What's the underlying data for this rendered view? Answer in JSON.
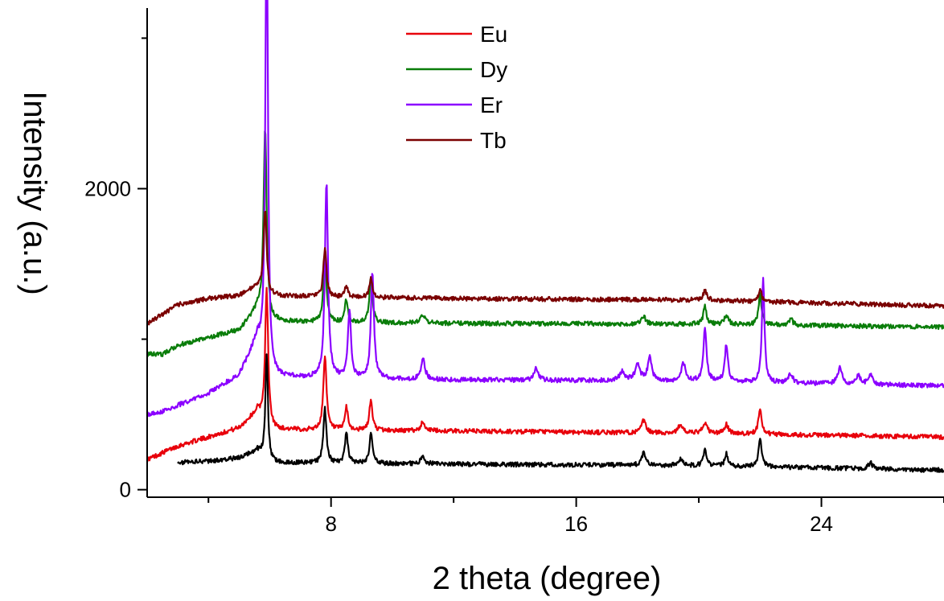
{
  "chart_data": {
    "type": "line",
    "xlabel": "2 theta (degree)",
    "ylabel": "Intensity (a.u.)",
    "xlim": [
      2,
      28
    ],
    "ylim": [
      -50,
      3200
    ],
    "x_ticks": [
      8,
      16,
      24
    ],
    "y_ticks": [
      0,
      2000
    ],
    "grid": false,
    "legend_position": "top-center",
    "series": [
      {
        "name": "Eu",
        "color": "#e8000b",
        "in_legend": true,
        "baseline": [
          [
            2.0,
            200
          ],
          [
            3.0,
            290
          ],
          [
            4.0,
            350
          ],
          [
            5.0,
            410
          ],
          [
            5.6,
            520
          ],
          [
            6.0,
            400
          ],
          [
            8.0,
            395
          ],
          [
            12.0,
            390
          ],
          [
            20.0,
            375
          ],
          [
            28.0,
            350
          ]
        ],
        "peaks": [
          [
            5.9,
            900,
            0.06
          ],
          [
            7.8,
            500,
            0.06
          ],
          [
            8.5,
            150,
            0.06
          ],
          [
            9.3,
            200,
            0.06
          ],
          [
            11.0,
            60,
            0.08
          ],
          [
            18.2,
            80,
            0.08
          ],
          [
            19.4,
            60,
            0.08
          ],
          [
            20.2,
            70,
            0.08
          ],
          [
            20.9,
            60,
            0.08
          ],
          [
            22.0,
            180,
            0.06
          ]
        ]
      },
      {
        "name": "Dy",
        "color": "#0a7d0a",
        "in_legend": true,
        "baseline": [
          [
            2.0,
            900
          ],
          [
            2.5,
            900
          ],
          [
            3.0,
            960
          ],
          [
            4.0,
            1010
          ],
          [
            5.0,
            1060
          ],
          [
            5.6,
            1200
          ],
          [
            6.0,
            1120
          ],
          [
            8.0,
            1110
          ],
          [
            12.0,
            1105
          ],
          [
            20.0,
            1100
          ],
          [
            28.0,
            1080
          ]
        ],
        "peaks": [
          [
            5.85,
            1250,
            0.06
          ],
          [
            7.8,
            450,
            0.06
          ],
          [
            8.5,
            150,
            0.06
          ],
          [
            9.3,
            300,
            0.06
          ],
          [
            11.0,
            60,
            0.08
          ],
          [
            18.2,
            50,
            0.08
          ],
          [
            20.2,
            120,
            0.06
          ],
          [
            20.9,
            60,
            0.08
          ],
          [
            22.0,
            200,
            0.06
          ],
          [
            23.0,
            40,
            0.08
          ]
        ]
      },
      {
        "name": "Er",
        "color": "#8b00ff",
        "in_legend": true,
        "baseline": [
          [
            2.0,
            500
          ],
          [
            2.5,
            520
          ],
          [
            3.0,
            560
          ],
          [
            4.0,
            640
          ],
          [
            5.0,
            760
          ],
          [
            5.6,
            1000
          ],
          [
            6.0,
            750
          ],
          [
            8.0,
            740
          ],
          [
            12.0,
            730
          ],
          [
            20.0,
            720
          ],
          [
            28.0,
            690
          ]
        ],
        "peaks": [
          [
            5.9,
            3100,
            0.05
          ],
          [
            7.85,
            1300,
            0.06
          ],
          [
            8.6,
            450,
            0.06
          ],
          [
            9.35,
            700,
            0.06
          ],
          [
            11.0,
            130,
            0.08
          ],
          [
            14.7,
            80,
            0.08
          ],
          [
            17.5,
            60,
            0.1
          ],
          [
            18.0,
            100,
            0.1
          ],
          [
            18.4,
            150,
            0.08
          ],
          [
            19.5,
            120,
            0.08
          ],
          [
            20.2,
            350,
            0.06
          ],
          [
            20.9,
            250,
            0.06
          ],
          [
            22.1,
            700,
            0.05
          ],
          [
            23.0,
            60,
            0.08
          ],
          [
            24.6,
            110,
            0.08
          ],
          [
            25.2,
            60,
            0.08
          ],
          [
            25.6,
            60,
            0.08
          ]
        ]
      },
      {
        "name": "Tb",
        "color": "#7a0000",
        "in_legend": true,
        "baseline": [
          [
            2.0,
            1100
          ],
          [
            3.0,
            1230
          ],
          [
            4.0,
            1270
          ],
          [
            5.0,
            1290
          ],
          [
            5.6,
            1350
          ],
          [
            6.0,
            1290
          ],
          [
            8.0,
            1280
          ],
          [
            12.0,
            1270
          ],
          [
            20.0,
            1260
          ],
          [
            28.0,
            1220
          ]
        ],
        "peaks": [
          [
            5.85,
            550,
            0.06
          ],
          [
            7.8,
            320,
            0.06
          ],
          [
            8.5,
            70,
            0.06
          ],
          [
            9.3,
            130,
            0.06
          ],
          [
            20.2,
            60,
            0.08
          ],
          [
            22.0,
            80,
            0.06
          ]
        ]
      },
      {
        "name": "",
        "color": "#000000",
        "in_legend": false,
        "baseline": [
          [
            3.0,
            180
          ],
          [
            4.0,
            190
          ],
          [
            5.0,
            210
          ],
          [
            5.6,
            260
          ],
          [
            6.0,
            180
          ],
          [
            8.0,
            175
          ],
          [
            12.0,
            170
          ],
          [
            20.0,
            160
          ],
          [
            28.0,
            130
          ]
        ],
        "peaks": [
          [
            5.9,
            700,
            0.05
          ],
          [
            7.8,
            360,
            0.06
          ],
          [
            8.5,
            200,
            0.06
          ],
          [
            9.3,
            200,
            0.06
          ],
          [
            11.0,
            50,
            0.08
          ],
          [
            18.2,
            80,
            0.08
          ],
          [
            19.4,
            40,
            0.08
          ],
          [
            20.2,
            100,
            0.06
          ],
          [
            20.9,
            80,
            0.06
          ],
          [
            22.0,
            200,
            0.06
          ],
          [
            25.6,
            40,
            0.08
          ]
        ]
      }
    ]
  }
}
